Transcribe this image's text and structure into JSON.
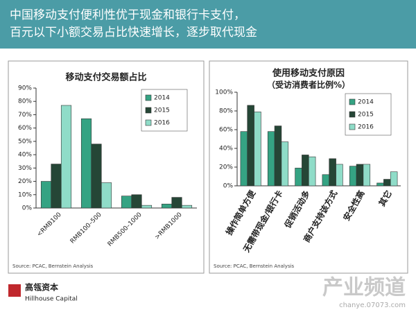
{
  "header": {
    "lines": [
      "中国移动支付便利性优于现金和银行卡支付，",
      "百元以下小额交易占比快速增长，逐步取代现金"
    ]
  },
  "chart_data": [
    {
      "type": "bar",
      "title": "移动支付交易额占比",
      "categories": [
        "<RMB100",
        "RMB100–500",
        "RMB500–1000",
        ">RMB1000"
      ],
      "series": [
        {
          "name": "2014",
          "color": "#35a383",
          "values": [
            20,
            67,
            9,
            3
          ]
        },
        {
          "name": "2015",
          "color": "#254636",
          "values": [
            33,
            48,
            10,
            8
          ]
        },
        {
          "name": "2016",
          "color": "#8fdcc8",
          "values": [
            77,
            19,
            2,
            2
          ]
        }
      ],
      "ylim": [
        0,
        90
      ],
      "yticks": [
        {
          "value": 0,
          "label": "0%"
        },
        {
          "value": 10,
          "label": "10%"
        },
        {
          "value": 20,
          "label": "20%"
        },
        {
          "value": 30,
          "label": "30%"
        },
        {
          "value": 40,
          "label": "40%"
        },
        {
          "value": 50,
          "label": "50%"
        },
        {
          "value": 60,
          "label": "60%"
        },
        {
          "value": 70,
          "label": "70%"
        },
        {
          "value": 80,
          "label": "80%"
        },
        {
          "value": 90,
          "label": "90%"
        }
      ],
      "legend": "top-right",
      "source": "Source: PCAC, Bernstein Analysis"
    },
    {
      "type": "bar",
      "title": "使用移动支付原因",
      "subtitle": "（受访消费者比例%）",
      "categories": [
        "操作简单方便",
        "无需带现金/银行卡",
        "促销活动多",
        "商户支持该方式",
        "安全性高",
        "其它"
      ],
      "series": [
        {
          "name": "2014",
          "color": "#35a383",
          "values": [
            58,
            58,
            19,
            12,
            21,
            3
          ]
        },
        {
          "name": "2015",
          "color": "#254636",
          "values": [
            86,
            64,
            33,
            29,
            23,
            7
          ]
        },
        {
          "name": "2016",
          "color": "#8fdcc8",
          "values": [
            79,
            47,
            31,
            23,
            23,
            15
          ]
        }
      ],
      "ylim": [
        0,
        100
      ],
      "yticks": [
        {
          "value": 0,
          "label": "0%"
        },
        {
          "value": 20,
          "label": "20%"
        },
        {
          "value": 40,
          "label": "40%"
        },
        {
          "value": 60,
          "label": "60%"
        },
        {
          "value": 80,
          "label": "80%"
        },
        {
          "value": 100,
          "label": "100%"
        }
      ],
      "legend": "top-right",
      "source": "Source: PCAC, Bernstein Analysis"
    }
  ],
  "footer": {
    "brand": "高瓴资本",
    "brand_en": "Hillhouse Capital"
  },
  "watermark": {
    "title": "产业频道",
    "url": "chanye.07073.com"
  }
}
